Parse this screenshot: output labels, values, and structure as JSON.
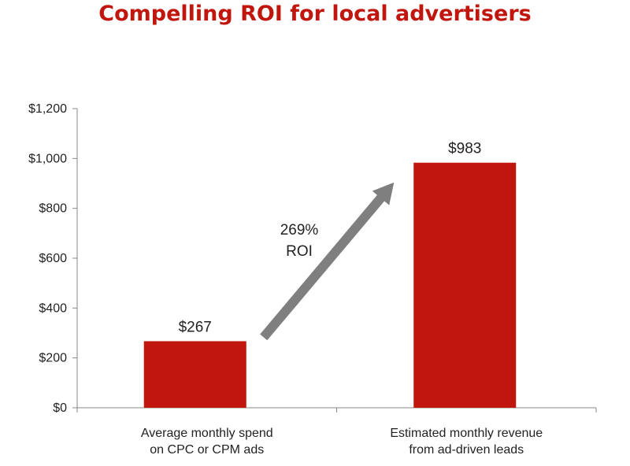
{
  "chart_data": {
    "type": "bar",
    "title": "Compelling ROI for local advertisers",
    "categories": [
      [
        "Average monthly spend",
        "on CPC or CPM ads"
      ],
      [
        "Estimated monthly revenue",
        "from ad-driven leads"
      ]
    ],
    "values": [
      267,
      983
    ],
    "data_labels": [
      "$267",
      "$983"
    ],
    "y_ticks": [
      0,
      200,
      400,
      600,
      800,
      1000,
      1200
    ],
    "y_tick_labels": [
      "$0",
      "$200",
      "$400",
      "$600",
      "$800",
      "$1,000",
      "$1,200"
    ],
    "ylim": [
      0,
      1200
    ],
    "grid": false,
    "annotation": {
      "lines": [
        "269%",
        "ROI"
      ],
      "arrow": "from first bar to second bar"
    },
    "colors": {
      "bar": "#c0160d",
      "title": "#c0160d",
      "arrow": "#7f7f7f",
      "axis": "#888888"
    }
  }
}
